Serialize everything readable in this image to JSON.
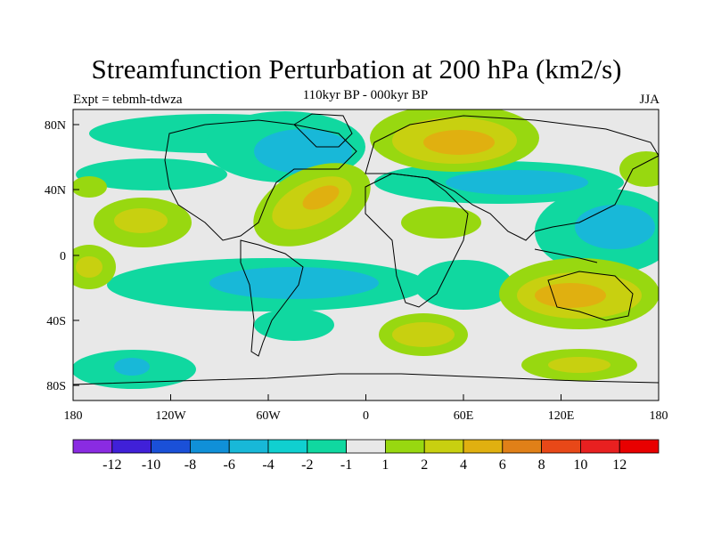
{
  "title": "Streamfunction Perturbation at 200 hPa (km2/s)",
  "subtitle": "110kyr BP - 000kyr BP",
  "left_label": "Expt = tebmh-tdwza",
  "right_label": "JJA",
  "axes": {
    "lat_labels": [
      "80N",
      "40N",
      "0",
      "40S",
      "80S"
    ],
    "lon_labels": [
      "180",
      "120W",
      "60W",
      "0",
      "60E",
      "120E",
      "180"
    ]
  },
  "colorbar": {
    "labels": [
      "-12",
      "-10",
      "-8",
      "-6",
      "-4",
      "-2",
      "-1",
      "1",
      "2",
      "4",
      "6",
      "8",
      "10",
      "12"
    ],
    "colors": [
      "#8a2be2",
      "#4020d8",
      "#1a50d8",
      "#1090d8",
      "#18b8d8",
      "#10d0d0",
      "#10d8a0",
      "#e8e8e8",
      "#98d810",
      "#c8d010",
      "#e0b010",
      "#e08018",
      "#e84818",
      "#e82020",
      "#e80000"
    ]
  }
}
